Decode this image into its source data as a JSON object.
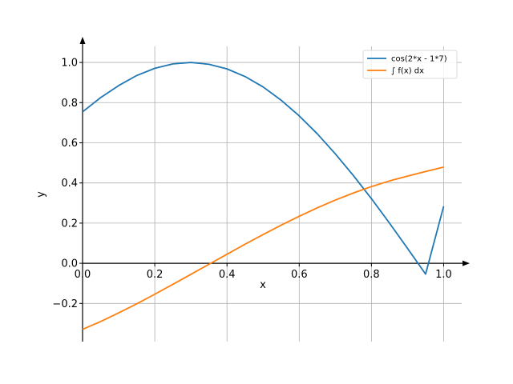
{
  "chart_data": {
    "type": "line",
    "title": "",
    "xlabel": "x",
    "ylabel": "y",
    "xlim": [
      0.0,
      1.05
    ],
    "ylim": [
      -0.39,
      1.08
    ],
    "grid": true,
    "legend_position": "top-right",
    "x_ticks": [
      0.0,
      0.2,
      0.4,
      0.6,
      0.8,
      1.0
    ],
    "x_tick_labels": [
      "0.0",
      "0.2",
      "0.4",
      "0.6",
      "0.8",
      "1.0"
    ],
    "y_ticks": [
      -0.2,
      0.0,
      0.2,
      0.4,
      0.6,
      0.8,
      1.0
    ],
    "y_tick_labels": [
      "−0.2",
      "0.0",
      "0.2",
      "0.4",
      "0.6",
      "0.8",
      "1.0"
    ],
    "x": [
      0.0,
      0.05,
      0.1,
      0.15,
      0.2,
      0.25,
      0.3,
      0.35,
      0.4,
      0.45,
      0.5,
      0.55,
      0.6,
      0.65,
      0.7,
      0.75,
      0.8,
      0.85,
      0.9,
      0.95,
      1.0
    ],
    "series": [
      {
        "name": "cos(2*x - 1*7)",
        "color": "#1f77b4",
        "values": [
          0.754,
          0.825,
          0.885,
          0.935,
          0.971,
          0.993,
          1.0,
          0.991,
          0.968,
          0.93,
          0.878,
          0.812,
          0.734,
          0.645,
          0.545,
          0.437,
          0.322,
          0.2,
          0.074,
          -0.054,
          0.284
        ]
      },
      {
        "name": "∫ f(x) dx",
        "color": "#ff7f0e",
        "values": [
          -0.329,
          -0.29,
          -0.247,
          -0.202,
          -0.154,
          -0.105,
          -0.055,
          -0.005,
          0.045,
          0.095,
          0.143,
          0.19,
          0.234,
          0.276,
          0.315,
          0.35,
          0.382,
          0.41,
          0.434,
          0.457,
          0.479
        ]
      }
    ]
  }
}
